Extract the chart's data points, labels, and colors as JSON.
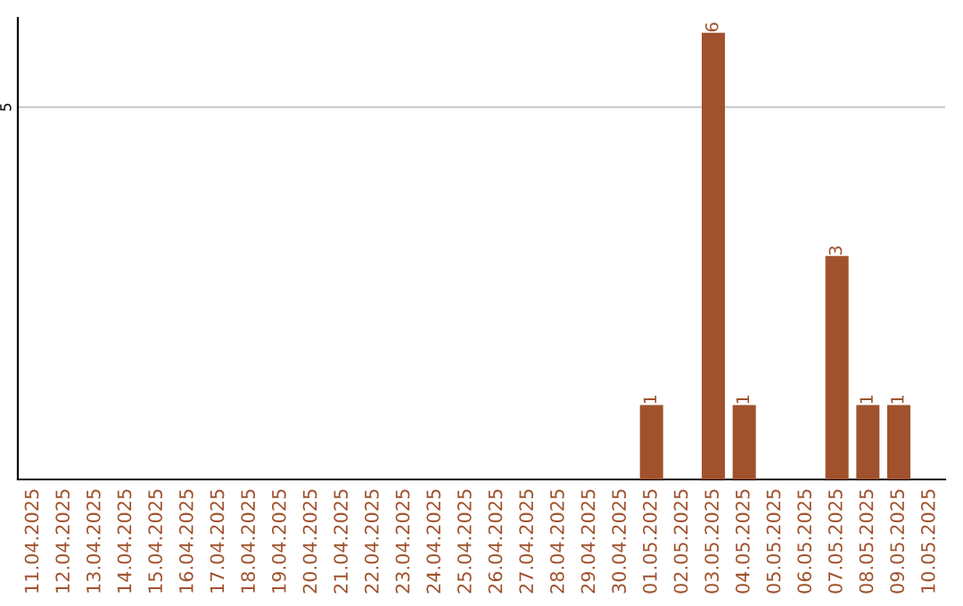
{
  "chart_data": {
    "type": "bar",
    "categories": [
      "11.04.2025",
      "12.04.2025",
      "13.04.2025",
      "14.04.2025",
      "15.04.2025",
      "16.04.2025",
      "17.04.2025",
      "18.04.2025",
      "19.04.2025",
      "20.04.2025",
      "21.04.2025",
      "22.04.2025",
      "23.04.2025",
      "24.04.2025",
      "25.04.2025",
      "26.04.2025",
      "27.04.2025",
      "28.04.2025",
      "29.04.2025",
      "30.04.2025",
      "01.05.2025",
      "02.05.2025",
      "03.05.2025",
      "04.05.2025",
      "05.05.2025",
      "06.05.2025",
      "07.05.2025",
      "08.05.2025",
      "09.05.2025",
      "10.05.2025"
    ],
    "values": [
      null,
      null,
      null,
      null,
      null,
      null,
      null,
      null,
      null,
      null,
      null,
      null,
      null,
      null,
      null,
      null,
      null,
      null,
      null,
      null,
      1,
      null,
      6,
      1,
      null,
      null,
      3,
      1,
      1,
      null
    ],
    "data_labels": true,
    "color": "#a0522d",
    "ylim": [
      0,
      6.2
    ],
    "ref_lines": [
      {
        "axis": "y",
        "value": 5,
        "label": "5",
        "color": "#c8c8c8"
      }
    ]
  }
}
